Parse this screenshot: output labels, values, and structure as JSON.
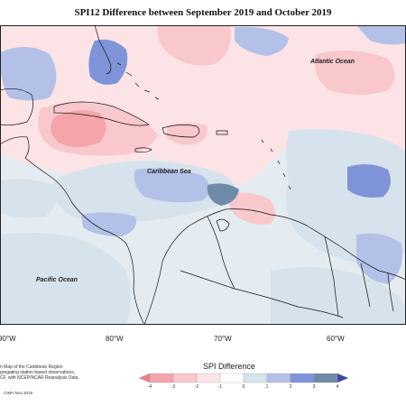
{
  "title": "SPI12 Difference between September 2019 and October 2019",
  "map_labels": {
    "atlantic": "Atlantic Ocean",
    "caribbean": "Caribbean Sea",
    "pacific": "Pacific Ocean"
  },
  "lon_labels": [
    "90°W",
    "80°W",
    "70°W",
    "60°W"
  ],
  "notes": [
    "n Map of the Caribbean Region",
    "gregating station based observations,",
    "CF, with NCEP/NCAR Reanalysis Data."
  ],
  "credit": "CIMH Nov 2019",
  "legend": {
    "title": "SPI Difference",
    "ticks": [
      "-4",
      "-3",
      "-2",
      "-1",
      "0",
      "1",
      "2",
      "3",
      "4"
    ],
    "colors": [
      "#ef7c86",
      "#f4a4aa",
      "#f8c8cc",
      "#fce3e5",
      "#ffffff",
      "#d6e3ec",
      "#b3c1e8",
      "#7f93d8",
      "#6f8aa8",
      "#3b4aa0"
    ]
  },
  "colors": {
    "neg_light": "#fce3e5",
    "neg_med": "#f8c8cc",
    "neg_strong": "#f4a4aa",
    "pos_pale": "#d6e3ec",
    "pos_light": "#b3c1e8",
    "pos_med": "#7f93d8",
    "pos_slate": "#6f8aa8"
  }
}
